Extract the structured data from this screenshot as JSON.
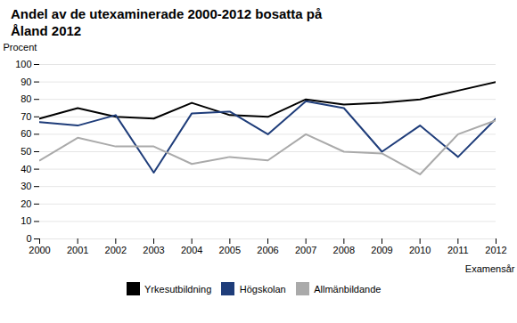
{
  "chart_data": {
    "type": "line",
    "title": "Andel av de utexaminerade 2000-2012 bosatta på\nÅland 2012",
    "xlabel": "Examensår",
    "ylabel": "Procent",
    "x": [
      2000,
      2001,
      2002,
      2003,
      2004,
      2005,
      2006,
      2007,
      2008,
      2009,
      2010,
      2011,
      2012
    ],
    "series": [
      {
        "name": "Yrkesutbildning",
        "color": "#000000",
        "values": [
          69,
          75,
          70,
          69,
          78,
          71,
          70,
          80,
          77,
          78,
          80,
          85,
          90
        ]
      },
      {
        "name": "Högskolan",
        "color": "#1f3d7a",
        "values": [
          67,
          65,
          71,
          38,
          72,
          73,
          60,
          79,
          75,
          50,
          65,
          47,
          69
        ]
      },
      {
        "name": "Allmänbildande",
        "color": "#aaaaaa",
        "values": [
          45,
          58,
          53,
          53,
          43,
          47,
          45,
          60,
          50,
          49,
          37,
          60,
          68
        ]
      }
    ],
    "xlim": [
      2000,
      2012
    ],
    "xticks": [
      2000,
      2001,
      2002,
      2003,
      2004,
      2005,
      2006,
      2007,
      2008,
      2009,
      2010,
      2011,
      2012
    ],
    "ylim": [
      0,
      100
    ],
    "yticks": [
      0,
      10,
      20,
      30,
      40,
      50,
      60,
      70,
      80,
      90,
      100
    ],
    "grid": true,
    "legend": "bottom"
  }
}
